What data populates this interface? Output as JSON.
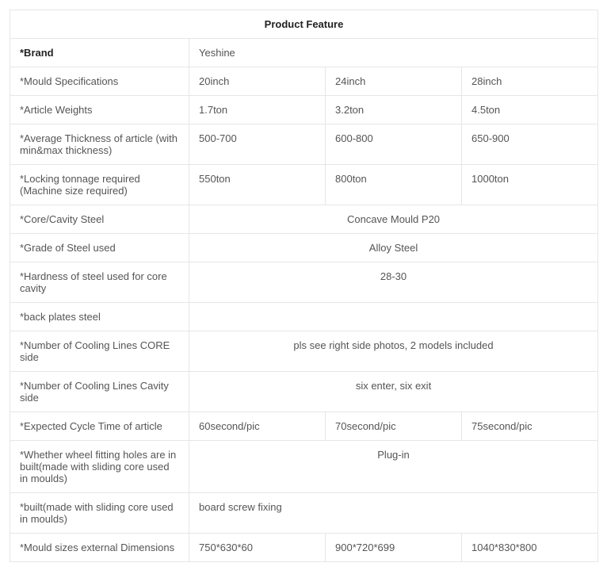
{
  "title": "Product Feature",
  "labels": {
    "brand": "*Brand",
    "mould_spec": "*Mould Specifications",
    "article_weights": "*Article Weights",
    "avg_thickness": "*Average Thickness of article (with min&max thickness)",
    "locking_tonnage": "*Locking tonnage required (Machine size required)",
    "core_cavity_steel": "*Core/Cavity Steel",
    "grade_steel": "*Grade of Steel used",
    "hardness": "*Hardness of steel used for core cavity",
    "back_plates": "*back plates steel",
    "cooling_core": "*Number of Cooling Lines CORE side",
    "cooling_cavity": "*Number of Cooling Lines Cavity side",
    "cycle_time": "*Expected Cycle Time of article",
    "wheel_fitting": "*Whether wheel fitting holes are in built(made with sliding core used in moulds)",
    "built": "*built(made with sliding core used in moulds)",
    "mould_sizes": "*Mould sizes external Dimensions"
  },
  "values": {
    "brand": "Yeshine",
    "mould_spec": [
      "20inch",
      "24inch",
      "28inch"
    ],
    "article_weights": [
      "1.7ton",
      "3.2ton",
      "4.5ton"
    ],
    "avg_thickness": [
      "500-700",
      "600-800",
      "650-900"
    ],
    "locking_tonnage": [
      "550ton",
      "800ton",
      "1000ton"
    ],
    "core_cavity_steel": "Concave Mould P20",
    "grade_steel": "Alloy Steel",
    "hardness": "28-30",
    "back_plates": "",
    "cooling_core": "pls see right side photos, 2 models included",
    "cooling_cavity": "six enter, six exit",
    "cycle_time": [
      "60second/pic",
      "70second/pic",
      "75second/pic"
    ],
    "wheel_fitting": "Plug-in",
    "built": "board screw fixing",
    "mould_sizes": [
      "750*630*60",
      "900*720*699",
      "1040*830*800"
    ]
  }
}
